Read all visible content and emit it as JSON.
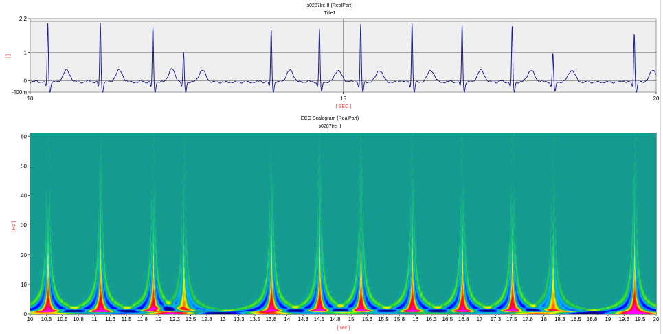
{
  "chart_data": [
    {
      "type": "line",
      "title": "s0287lre-II (RealPart)",
      "subtitle": "Title1",
      "xlabel": "[ SEC ]",
      "ylabel": "[ ]",
      "xlim": [
        10,
        20
      ],
      "ylim": [
        -0.4,
        2.2
      ],
      "x_ticks": [
        "10",
        "15",
        "20"
      ],
      "y_ticks": [
        "2.2",
        "1",
        "0",
        "-400m"
      ],
      "grid": true,
      "series": [
        {
          "color": "#1f1f8f",
          "r_peaks_sec": [
            10.28,
            11.12,
            11.96,
            12.45,
            13.85,
            14.62,
            15.28,
            16.1,
            16.9,
            17.7,
            18.35,
            19.65
          ],
          "r_peak_values": [
            2.1,
            2.1,
            1.95,
            1.05,
            1.9,
            1.9,
            2.05,
            2.1,
            2.05,
            1.95,
            1.05,
            1.75
          ],
          "baseline": -0.05
        }
      ]
    },
    {
      "type": "heatmap",
      "title": "ECG Scalogram (RealPart)",
      "subtitle": "s0287lre-II",
      "xlabel": "[ sec ]",
      "ylabel": "[ Hz ]",
      "xlim": [
        10,
        20
      ],
      "ylim": [
        0,
        61
      ],
      "x_ticks": [
        "10",
        "10.3",
        "10.5",
        "10.8",
        "11",
        "11.3",
        "11.5",
        "11.8",
        "12",
        "12.3",
        "12.5",
        "12.8",
        "13",
        "13.3",
        "13.5",
        "13.8",
        "14",
        "14.3",
        "14.5",
        "14.8",
        "15",
        "15.3",
        "15.5",
        "15.8",
        "16",
        "16.3",
        "16.5",
        "16.8",
        "17",
        "17.3",
        "17.5",
        "17.8",
        "18",
        "18.3",
        "18.5",
        "18.8",
        "19",
        "19.3",
        "19.5",
        "20"
      ],
      "y_ticks": [
        "0",
        "10",
        "20",
        "30",
        "40",
        "50",
        "60"
      ],
      "colormap": [
        "#00007f",
        "#0000ff",
        "#00bfff",
        "#00e5c0",
        "#2ee02e",
        "#ffff00",
        "#ff8c00",
        "#ff0000",
        "#ff00ff"
      ],
      "background_color": "#159a8f"
    }
  ]
}
